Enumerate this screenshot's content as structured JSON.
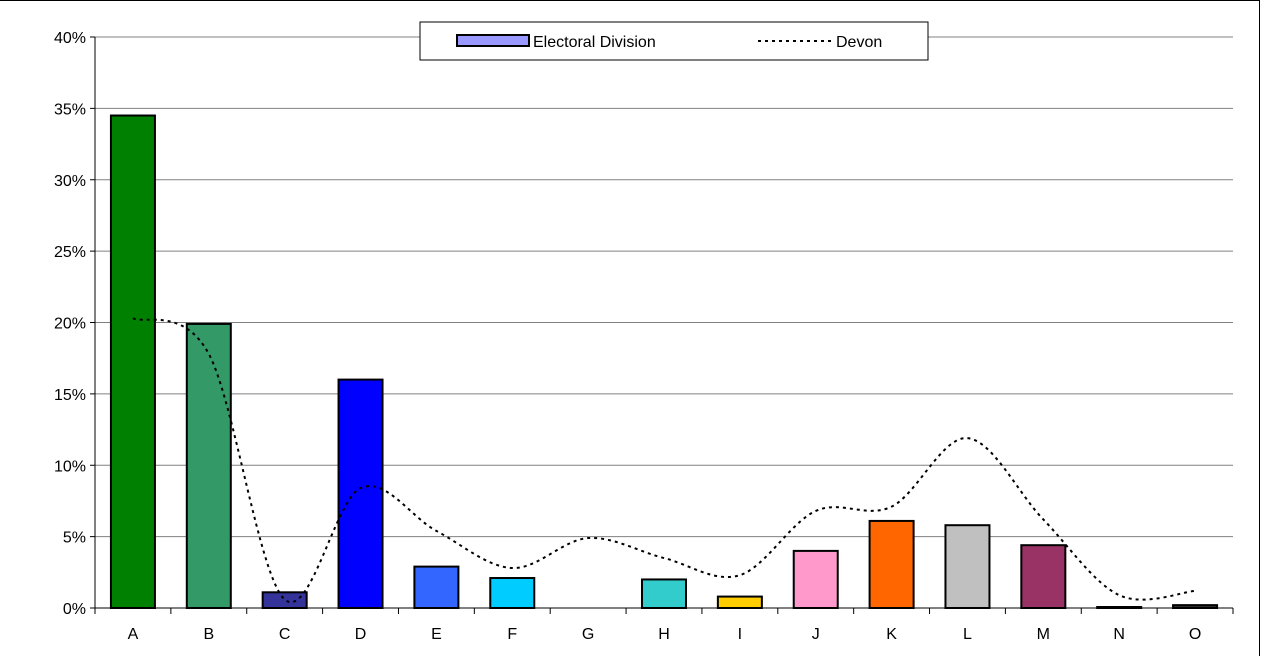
{
  "chart_data": {
    "type": "bar",
    "title": "",
    "xlabel": "",
    "ylabel": "",
    "categories": [
      "A",
      "B",
      "C",
      "D",
      "E",
      "F",
      "G",
      "H",
      "I",
      "J",
      "K",
      "L",
      "M",
      "N",
      "O"
    ],
    "series": [
      {
        "name": "Electoral Division",
        "kind": "bar",
        "values": [
          34.5,
          19.9,
          1.1,
          16.0,
          2.9,
          2.1,
          0.0,
          2.0,
          0.8,
          4.0,
          6.1,
          5.8,
          4.4,
          0.05,
          0.2
        ],
        "colors": [
          "#008000",
          "#339966",
          "#333399",
          "#0000FF",
          "#3366FF",
          "#00CCFF",
          "#FFFFFF",
          "#33CCCC",
          "#FFCC00",
          "#FF99CC",
          "#FF6600",
          "#C0C0C0",
          "#993366",
          "#808080",
          "#333333"
        ]
      },
      {
        "name": "Devon",
        "kind": "line",
        "style": "dotted",
        "color": "#000000",
        "values": [
          20.3,
          17.8,
          0.6,
          8.4,
          5.4,
          2.8,
          4.9,
          3.5,
          2.3,
          6.8,
          7.1,
          11.9,
          6.2,
          0.9,
          1.2
        ]
      }
    ],
    "ylim": [
      0,
      40
    ],
    "yticks": [
      0,
      5,
      10,
      15,
      20,
      25,
      30,
      35,
      40
    ],
    "ytick_labels": [
      "0%",
      "5%",
      "10%",
      "15%",
      "20%",
      "25%",
      "30%",
      "35%",
      "40%"
    ],
    "grid": true,
    "legend_position": "top-center",
    "legend": {
      "bar_label": "Electoral Division",
      "line_label": "Devon",
      "bar_swatch_color": "#9999FF"
    }
  }
}
